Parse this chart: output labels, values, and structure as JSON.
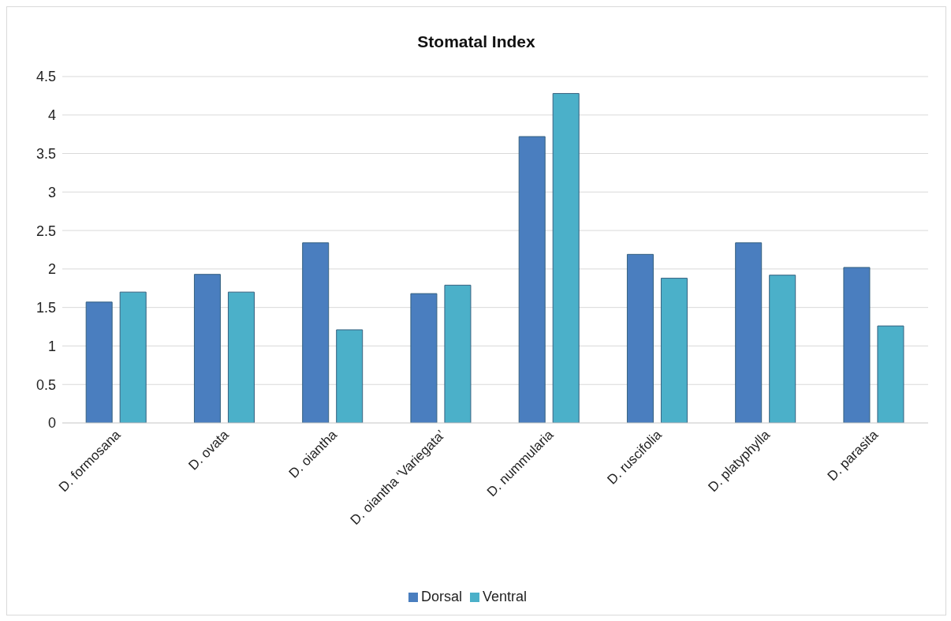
{
  "chart_data": {
    "type": "bar",
    "title": "Stomatal Index",
    "categories": [
      "D. formosana",
      "D. ovata",
      "D. oiantha",
      "D. oiantha ‘Variegata’",
      "D. nummularia",
      "D. ruscifolia",
      "D. platyphylla",
      "D.  parasita"
    ],
    "series": [
      {
        "name": "Dorsal",
        "color": "#4a7ebf",
        "values": [
          1.57,
          1.93,
          2.34,
          1.68,
          3.72,
          2.19,
          2.34,
          2.02
        ]
      },
      {
        "name": "Ventral",
        "color": "#4bb0c9",
        "values": [
          1.7,
          1.7,
          1.21,
          1.79,
          4.28,
          1.88,
          1.92,
          1.26
        ]
      }
    ],
    "ylim": [
      0,
      4.5
    ],
    "yticks": [
      0,
      0.5,
      1,
      1.5,
      2,
      2.5,
      3,
      3.5,
      4,
      4.5
    ],
    "grid": "y",
    "legend": "bottom"
  }
}
